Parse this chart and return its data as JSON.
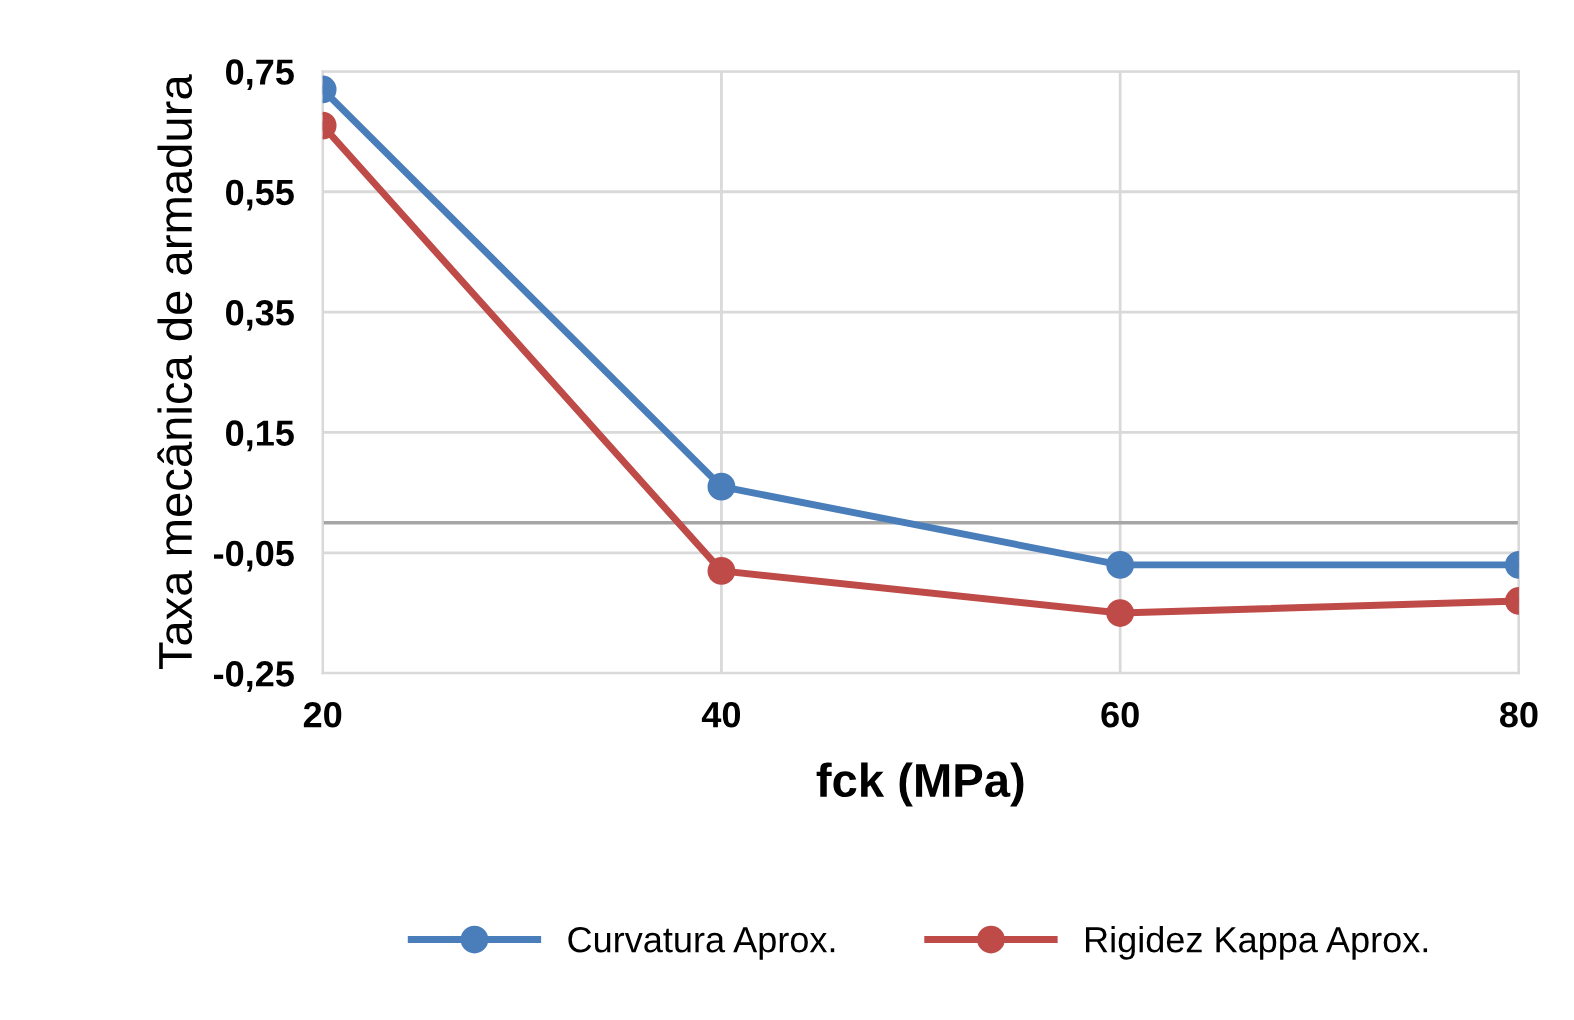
{
  "chart_data": {
    "type": "line",
    "xlabel": "fck (MPa)",
    "ylabel": "Taxa mecânica de armadura",
    "x": [
      20,
      40,
      60,
      80
    ],
    "series": [
      {
        "name": "Curvatura Aprox.",
        "color": "#4a7ebb",
        "values": [
          0.72,
          0.06,
          -0.07,
          -0.07
        ]
      },
      {
        "name": "Rigidez Kappa Aprox.",
        "color": "#be4b48",
        "values": [
          0.66,
          -0.08,
          -0.15,
          -0.13
        ]
      }
    ],
    "xlim": [
      20,
      80
    ],
    "xticks": [
      20,
      40,
      60,
      80
    ],
    "ylim": [
      -0.25,
      0.75
    ],
    "yticks": [
      {
        "value": -0.25,
        "label": "-0,25"
      },
      {
        "value": -0.05,
        "label": "-0,05"
      },
      {
        "value": 0.15,
        "label": "0,15"
      },
      {
        "value": 0.35,
        "label": "0,35"
      },
      {
        "value": 0.55,
        "label": "0,55"
      },
      {
        "value": 0.75,
        "label": "0,75"
      }
    ],
    "ref_lines": [
      {
        "axis": "y",
        "value": 0,
        "color": "#a6a6a6"
      }
    ],
    "grid": true,
    "legend": "bottom",
    "marker": "circle",
    "line_style": "solid"
  }
}
